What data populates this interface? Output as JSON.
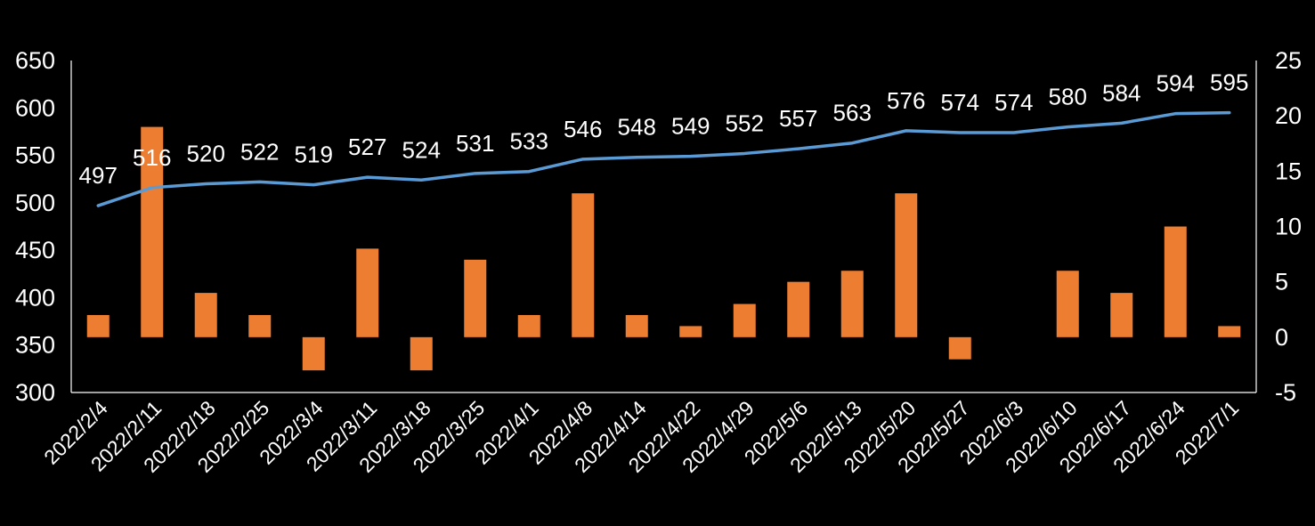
{
  "chart_data": {
    "type": "bar+line",
    "categories": [
      "2022/2/4",
      "2022/2/11",
      "2022/2/18",
      "2022/2/25",
      "2022/3/4",
      "2022/3/11",
      "2022/3/18",
      "2022/3/25",
      "2022/4/1",
      "2022/4/8",
      "2022/4/14",
      "2022/4/22",
      "2022/4/29",
      "2022/5/6",
      "2022/5/13",
      "2022/5/20",
      "2022/5/27",
      "2022/6/3",
      "2022/6/10",
      "2022/6/17",
      "2022/6/24",
      "2022/7/1"
    ],
    "series": [
      {
        "name": "line",
        "type": "line",
        "axis": "left",
        "color": "#5B9BD5",
        "values": [
          497,
          516,
          520,
          522,
          519,
          527,
          524,
          531,
          533,
          546,
          548,
          549,
          552,
          557,
          563,
          576,
          574,
          574,
          580,
          584,
          594,
          595
        ],
        "labels": [
          "497",
          "516",
          "520",
          "522",
          "519",
          "527",
          "524",
          "531",
          "533",
          "546",
          "548",
          "549",
          "552",
          "557",
          "563",
          "576",
          "574",
          "574",
          "580",
          "584",
          "594",
          "595"
        ]
      },
      {
        "name": "bars",
        "type": "bar",
        "axis": "right",
        "color": "#ED7D31",
        "values": [
          2,
          19,
          4,
          2,
          -3,
          8,
          -3,
          7,
          2,
          13,
          2,
          1,
          3,
          5,
          6,
          13,
          -2,
          0,
          6,
          4,
          10,
          1
        ]
      }
    ],
    "left_axis": {
      "min": 300,
      "max": 650,
      "step": 50,
      "tick_labels": [
        "300",
        "350",
        "400",
        "450",
        "500",
        "550",
        "600",
        "650"
      ]
    },
    "right_axis": {
      "min": -5,
      "max": 25,
      "step": 5,
      "tick_labels": [
        "-5",
        "0",
        "5",
        "10",
        "15",
        "20",
        "25"
      ]
    },
    "title": "",
    "xlabel": "",
    "ylabel": "",
    "grid": false,
    "legend": "none",
    "colors": {
      "background": "#000000",
      "axis": "#ffffff",
      "text": "#ffffff"
    }
  }
}
